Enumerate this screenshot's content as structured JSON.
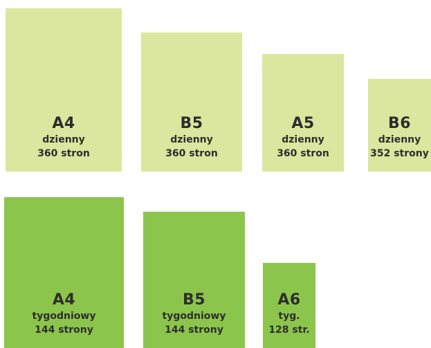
{
  "daily": [
    {
      "format": "A4",
      "type": "dzienny",
      "pages": "360 stron"
    },
    {
      "format": "B5",
      "type": "dzienny",
      "pages": "360 stron"
    },
    {
      "format": "A5",
      "type": "dzienny",
      "pages": "360 stron"
    },
    {
      "format": "B6",
      "type": "dzienny",
      "pages": "352 strony"
    }
  ],
  "weekly": [
    {
      "format": "A4",
      "type": "tygodniowy",
      "pages": "144 strony"
    },
    {
      "format": "B5",
      "type": "tygodniowy",
      "pages": "144 strony"
    },
    {
      "format": "A6",
      "type": "tyg.",
      "pages": "128 str."
    }
  ],
  "colors": {
    "daily_box": "#dbe69e",
    "weekly_box": "#8cc54b",
    "text": "#2d2d2d"
  }
}
